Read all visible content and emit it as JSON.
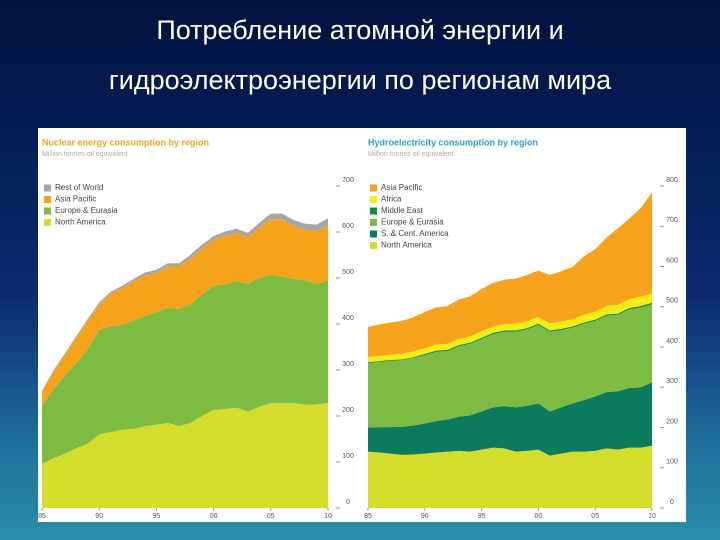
{
  "slide_title": [
    "Потребление атомной энергии и",
    "гидроэлектроэнергии по регионам мира"
  ],
  "chart_data": [
    {
      "type": "stacked_area",
      "title": "Nuclear energy consumption by region",
      "subtitle": "Million tonnes oil equivalent",
      "x": [
        1985,
        1986,
        1987,
        1988,
        1989,
        1990,
        1991,
        1992,
        1993,
        1994,
        1995,
        1996,
        1997,
        1998,
        1999,
        2000,
        2001,
        2002,
        2003,
        2004,
        2005,
        2006,
        2007,
        2008,
        2009,
        2010
      ],
      "xlim": [
        1985,
        2010
      ],
      "xticks": [
        {
          "value": 1985,
          "label": "85"
        },
        {
          "value": 1990,
          "label": "90"
        },
        {
          "value": 1995,
          "label": "95"
        },
        {
          "value": 2000,
          "label": "00"
        },
        {
          "value": 2005,
          "label": "05"
        },
        {
          "value": 2010,
          "label": "10"
        }
      ],
      "ylim": [
        0,
        700
      ],
      "yticks": [
        0,
        100,
        200,
        300,
        400,
        500,
        600,
        700
      ],
      "series": [
        {
          "name": "North America",
          "color": "#d4dc2c",
          "values": [
            96,
            108,
            118,
            130,
            140,
            160,
            165,
            170,
            172,
            178,
            181,
            185,
            178,
            185,
            200,
            213,
            215,
            218,
            210,
            220,
            228,
            228,
            228,
            225,
            225,
            228
          ]
        },
        {
          "name": "Europe & Eurasia",
          "color": "#7dbb42",
          "values": [
            127,
            150,
            170,
            185,
            205,
            227,
            230,
            228,
            235,
            240,
            245,
            250,
            255,
            258,
            265,
            270,
            272,
            275,
            278,
            280,
            280,
            275,
            270,
            270,
            262,
            266
          ]
        },
        {
          "name": "Asia Pacific",
          "color": "#f7a21b",
          "values": [
            30,
            38,
            45,
            55,
            62,
            55,
            70,
            80,
            85,
            88,
            85,
            90,
            92,
            100,
            100,
            100,
            105,
            105,
            100,
            110,
            120,
            125,
            115,
            110,
            115,
            120
          ]
        },
        {
          "name": "Rest of World",
          "color": "#a6a6a6",
          "values": [
            2,
            3,
            3,
            4,
            4,
            5,
            5,
            5,
            6,
            6,
            7,
            7,
            7,
            8,
            8,
            8,
            9,
            9,
            10,
            10,
            12,
            12,
            13,
            13,
            14,
            16
          ]
        }
      ]
    },
    {
      "type": "stacked_area",
      "title": "Hydroelectricity consumption by region",
      "subtitle": "Million tonnes oil equivalent",
      "x": [
        1985,
        1986,
        1987,
        1988,
        1989,
        1990,
        1991,
        1992,
        1993,
        1994,
        1995,
        1996,
        1997,
        1998,
        1999,
        2000,
        2001,
        2002,
        2003,
        2004,
        2005,
        2006,
        2007,
        2008,
        2009,
        2010
      ],
      "xlim": [
        1985,
        2010
      ],
      "xticks": [
        {
          "value": 1985,
          "label": "85"
        },
        {
          "value": 1990,
          "label": "90"
        },
        {
          "value": 1995,
          "label": "95"
        },
        {
          "value": 2000,
          "label": "00"
        },
        {
          "value": 2005,
          "label": "05"
        },
        {
          "value": 2010,
          "label": "10"
        }
      ],
      "ylim": [
        0,
        800
      ],
      "yticks": [
        0,
        100,
        200,
        300,
        400,
        500,
        600,
        700,
        800
      ],
      "series": [
        {
          "name": "North America",
          "color": "#d4dc2c",
          "values": [
            140,
            138,
            135,
            132,
            133,
            135,
            138,
            140,
            142,
            140,
            145,
            150,
            148,
            140,
            142,
            145,
            130,
            135,
            140,
            140,
            142,
            148,
            145,
            150,
            150,
            155
          ]
        },
        {
          "name": "S. & Cent. America",
          "color": "#0c7a5c",
          "values": [
            60,
            63,
            66,
            70,
            72,
            75,
            78,
            80,
            85,
            90,
            95,
            100,
            105,
            110,
            112,
            115,
            110,
            115,
            120,
            128,
            135,
            140,
            145,
            148,
            150,
            157
          ]
        },
        {
          "name": "Europe & Eurasia",
          "color": "#7dbb42",
          "values": [
            160,
            162,
            165,
            165,
            168,
            170,
            172,
            170,
            175,
            178,
            180,
            182,
            185,
            188,
            190,
            195,
            198,
            192,
            188,
            190,
            188,
            190,
            190,
            195,
            198,
            194
          ]
        },
        {
          "name": "Middle East",
          "color": "#0a8f3f",
          "values": [
            2,
            2,
            2,
            2,
            2,
            3,
            3,
            3,
            3,
            3,
            3,
            3,
            3,
            3,
            3,
            3,
            3,
            3,
            3,
            3,
            3,
            3,
            3,
            4,
            4,
            4
          ]
        },
        {
          "name": "Africa",
          "color": "#f4ec14",
          "values": [
            13,
            13,
            13,
            14,
            14,
            14,
            15,
            15,
            15,
            15,
            16,
            16,
            16,
            17,
            17,
            17,
            18,
            18,
            18,
            19,
            20,
            21,
            22,
            22,
            23,
            24
          ]
        },
        {
          "name": "Asia Pacific",
          "color": "#f7a21b",
          "values": [
            75,
            78,
            80,
            82,
            85,
            90,
            92,
            94,
            98,
            100,
            105,
            108,
            110,
            112,
            115,
            115,
            120,
            125,
            130,
            145,
            155,
            170,
            190,
            200,
            220,
            250
          ]
        }
      ]
    }
  ]
}
